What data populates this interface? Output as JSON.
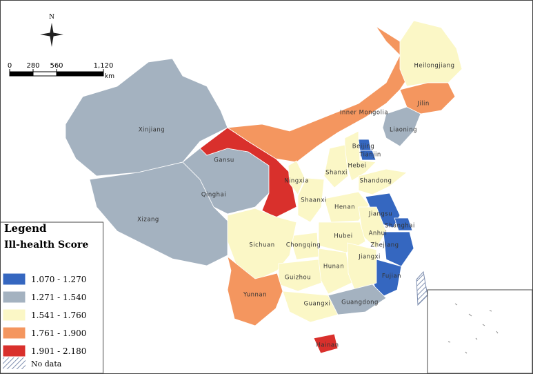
{
  "north": "N",
  "scale_bar": {
    "ticks": [
      0,
      280,
      560,
      {
        "value": 1120,
        "label": "1,120"
      }
    ],
    "unit": "km"
  },
  "legend": {
    "title": "Legend",
    "subtitle": "Ill-health Score",
    "classes": [
      {
        "label": "1.070 - 1.270",
        "color": "#3567c0"
      },
      {
        "label": "1.271 - 1.540",
        "color": "#a4b2c0"
      },
      {
        "label": "1.541 - 1.760",
        "color": "#fbf7c6"
      },
      {
        "label": "1.761 - 1.900",
        "color": "#f4965f"
      },
      {
        "label": "1.901 - 2.180",
        "color": "#d9302c"
      }
    ],
    "no_data": "No data"
  },
  "regions": [
    {
      "name": "Xinjiang",
      "class": 1
    },
    {
      "name": "Xizang",
      "class": 1
    },
    {
      "name": "Qinghai",
      "class": 1
    },
    {
      "name": "Gansu",
      "class": 4
    },
    {
      "name": "Inner Mongolia",
      "class": 3
    },
    {
      "name": "Heilongjiang",
      "class": 2
    },
    {
      "name": "Jilin",
      "class": 3
    },
    {
      "name": "Liaoning",
      "class": 1
    },
    {
      "name": "Beijing",
      "class": 0
    },
    {
      "name": "Tianjin",
      "class": 0
    },
    {
      "name": "Hebei",
      "class": 2
    },
    {
      "name": "Shanxi",
      "class": 2
    },
    {
      "name": "Shandong",
      "class": 2
    },
    {
      "name": "Ningxia",
      "class": 2
    },
    {
      "name": "Shaanxi",
      "class": 2
    },
    {
      "name": "Henan",
      "class": 2
    },
    {
      "name": "Jiangsu",
      "class": 0
    },
    {
      "name": "Anhui",
      "class": 2
    },
    {
      "name": "Shanghai",
      "class": 0
    },
    {
      "name": "Zhejiang",
      "class": 0
    },
    {
      "name": "Fujian",
      "class": 0
    },
    {
      "name": "Hubei",
      "class": 2
    },
    {
      "name": "Chongqing",
      "class": 2
    },
    {
      "name": "Sichuan",
      "class": 2
    },
    {
      "name": "Hunan",
      "class": 2
    },
    {
      "name": "Jiangxi",
      "class": 2
    },
    {
      "name": "Guizhou",
      "class": 2
    },
    {
      "name": "Yunnan",
      "class": 3
    },
    {
      "name": "Guangxi",
      "class": 2
    },
    {
      "name": "Guangdong",
      "class": 1
    },
    {
      "name": "Hainan",
      "class": 4
    }
  ]
}
